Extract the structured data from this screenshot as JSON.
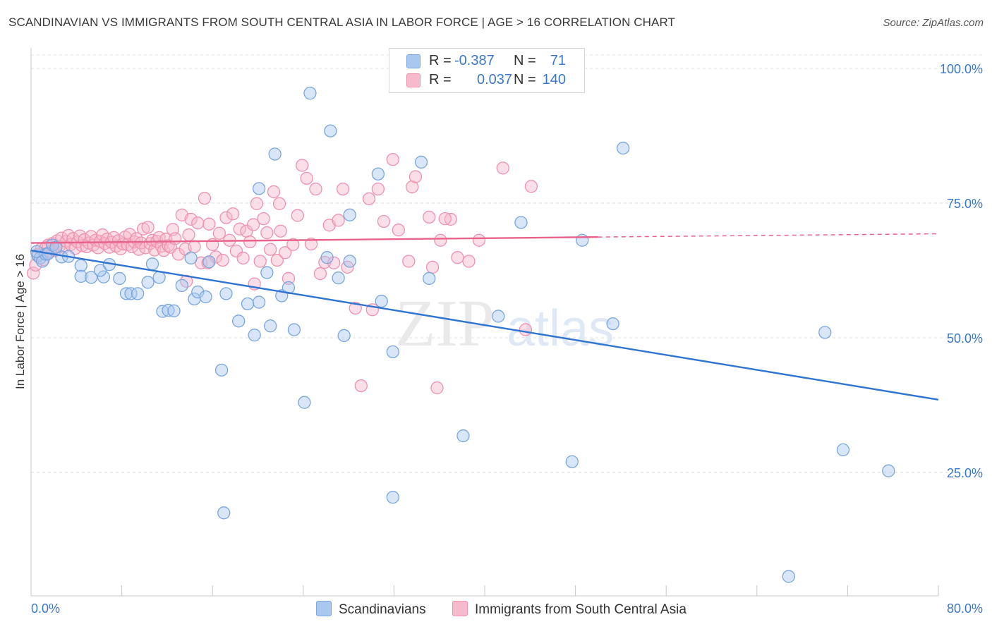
{
  "title": "SCANDINAVIAN VS IMMIGRANTS FROM SOUTH CENTRAL ASIA IN LABOR FORCE | AGE > 16 CORRELATION CHART",
  "source": "Source: ZipAtlas.com",
  "watermark": {
    "zip": "ZIP",
    "atlas": "atlas"
  },
  "legend": {
    "r_label": "R =",
    "n_label": "N =",
    "rows": [
      {
        "r": "-0.387",
        "n": "71",
        "color": "#a9c8f0",
        "border": "#7aa6de"
      },
      {
        "r": "0.037",
        "n": "140",
        "color": "#f7b9cc",
        "border": "#ee92ad"
      }
    ]
  },
  "bottom_legend": [
    {
      "label": "Scandinavians",
      "color": "#a9c8f0",
      "border": "#7aa6de"
    },
    {
      "label": "Immigrants from South Central Asia",
      "color": "#f7b9cc",
      "border": "#ee92ad"
    }
  ],
  "chart_data": {
    "type": "scatter",
    "title": "SCANDINAVIAN VS IMMIGRANTS FROM SOUTH CENTRAL ASIA IN LABOR FORCE | AGE > 16 CORRELATION CHART",
    "xlabel": "",
    "ylabel": "In Labor Force | Age > 16",
    "xlim": [
      0,
      80
    ],
    "ylim": [
      0,
      100
    ],
    "x_tick_labels": [
      "0.0%",
      "80.0%"
    ],
    "y_tick_values": [
      25,
      50,
      75,
      100
    ],
    "y_tick_labels": [
      "25.0%",
      "50.0%",
      "75.0%",
      "100.0%"
    ],
    "grid": true,
    "series": [
      {
        "name": "Scandinavians",
        "color": "#7aa6de",
        "fill": "rgba(169,200,240,0.45)",
        "line_color": "#2f74d0",
        "trend": {
          "x0": 0,
          "y0": 66.2,
          "x1": 80,
          "y1": 38.5
        },
        "points": [
          [
            0.6,
            65.2
          ],
          [
            0.8,
            64.8
          ],
          [
            1.0,
            64.2
          ],
          [
            1.3,
            65.5
          ],
          [
            1.5,
            65.6
          ],
          [
            1.9,
            67.2
          ],
          [
            2.7,
            65.0
          ],
          [
            2.2,
            66.8
          ],
          [
            4.4,
            63.4
          ],
          [
            3.3,
            65.1
          ],
          [
            4.4,
            61.4
          ],
          [
            5.3,
            61.2
          ],
          [
            6.4,
            61.3
          ],
          [
            6.1,
            62.5
          ],
          [
            6.9,
            63.6
          ],
          [
            7.8,
            61.0
          ],
          [
            8.4,
            58.2
          ],
          [
            8.8,
            58.2
          ],
          [
            9.4,
            58.2
          ],
          [
            10.3,
            60.3
          ],
          [
            10.7,
            63.7
          ],
          [
            11.3,
            61.2
          ],
          [
            11.6,
            54.9
          ],
          [
            12.1,
            55.1
          ],
          [
            12.6,
            55.0
          ],
          [
            13.3,
            59.7
          ],
          [
            14.1,
            64.8
          ],
          [
            14.4,
            57.2
          ],
          [
            14.7,
            58.5
          ],
          [
            15.4,
            57.6
          ],
          [
            15.7,
            64.1
          ],
          [
            16.8,
            44.0
          ],
          [
            17.2,
            58.2
          ],
          [
            17.0,
            17.5
          ],
          [
            18.3,
            53.1
          ],
          [
            19.1,
            56.3
          ],
          [
            19.7,
            50.5
          ],
          [
            20.1,
            56.6
          ],
          [
            20.1,
            77.7
          ],
          [
            20.8,
            62.1
          ],
          [
            21.1,
            52.2
          ],
          [
            21.5,
            84.1
          ],
          [
            22.1,
            57.8
          ],
          [
            22.7,
            59.3
          ],
          [
            23.2,
            51.5
          ],
          [
            24.1,
            38.0
          ],
          [
            24.6,
            95.4
          ],
          [
            26.1,
            64.9
          ],
          [
            26.4,
            88.4
          ],
          [
            27.1,
            61.1
          ],
          [
            27.6,
            50.4
          ],
          [
            28.1,
            72.8
          ],
          [
            28.1,
            64.2
          ],
          [
            30.6,
            80.4
          ],
          [
            30.9,
            56.8
          ],
          [
            31.9,
            47.4
          ],
          [
            31.9,
            20.4
          ],
          [
            34.4,
            82.6
          ],
          [
            35.1,
            61.0
          ],
          [
            38.1,
            31.8
          ],
          [
            41.2,
            54.0
          ],
          [
            43.2,
            71.4
          ],
          [
            47.7,
            27.0
          ],
          [
            48.6,
            68.1
          ],
          [
            51.3,
            52.6
          ],
          [
            52.2,
            85.2
          ],
          [
            66.8,
            5.7
          ],
          [
            70.0,
            51.0
          ],
          [
            71.6,
            29.2
          ],
          [
            75.6,
            25.3
          ],
          [
            0.5,
            66.0
          ]
        ]
      },
      {
        "name": "Immigrants from South Central Asia",
        "color": "#ee92ad",
        "fill": "rgba(247,185,204,0.45)",
        "line_color": "#e8628c",
        "trend": {
          "x0": 0,
          "y0": 67.6,
          "x1": 50,
          "y1": 68.7
        },
        "trend_ext": {
          "x0": 50,
          "y0": 68.7,
          "x1": 80,
          "y1": 69.3
        },
        "points": [
          [
            0.2,
            62.0
          ],
          [
            0.4,
            63.5
          ],
          [
            0.6,
            65.5
          ],
          [
            0.9,
            66.5
          ],
          [
            1.1,
            64.5
          ],
          [
            1.3,
            66.8
          ],
          [
            1.5,
            67.2
          ],
          [
            1.7,
            66.0
          ],
          [
            1.9,
            67.5
          ],
          [
            2.1,
            66.2
          ],
          [
            2.3,
            68.0
          ],
          [
            2.5,
            67.0
          ],
          [
            2.7,
            68.5
          ],
          [
            2.9,
            66.8
          ],
          [
            3.1,
            67.9
          ],
          [
            3.3,
            69.0
          ],
          [
            3.5,
            67.3
          ],
          [
            3.7,
            68.4
          ],
          [
            3.9,
            66.6
          ],
          [
            4.1,
            67.8
          ],
          [
            4.3,
            68.9
          ],
          [
            4.5,
            67.1
          ],
          [
            4.7,
            68.2
          ],
          [
            4.9,
            66.9
          ],
          [
            5.1,
            67.6
          ],
          [
            5.3,
            68.8
          ],
          [
            5.5,
            67.2
          ],
          [
            5.7,
            68.1
          ],
          [
            5.9,
            66.7
          ],
          [
            6.1,
            67.9
          ],
          [
            6.3,
            69.1
          ],
          [
            6.5,
            67.5
          ],
          [
            6.7,
            68.3
          ],
          [
            6.9,
            66.8
          ],
          [
            7.1,
            67.7
          ],
          [
            7.3,
            68.6
          ],
          [
            7.5,
            67.0
          ],
          [
            7.7,
            68.0
          ],
          [
            7.9,
            66.5
          ],
          [
            8.1,
            67.4
          ],
          [
            8.3,
            68.7
          ],
          [
            8.5,
            67.3
          ],
          [
            8.7,
            69.2
          ],
          [
            8.9,
            66.9
          ],
          [
            9.1,
            67.8
          ],
          [
            9.3,
            68.4
          ],
          [
            9.5,
            66.4
          ],
          [
            9.7,
            67.6
          ],
          [
            9.9,
            70.2
          ],
          [
            10.1,
            66.7
          ],
          [
            10.3,
            70.5
          ],
          [
            10.5,
            67.5
          ],
          [
            10.7,
            68.1
          ],
          [
            10.9,
            66.3
          ],
          [
            11.1,
            67.9
          ],
          [
            11.3,
            68.6
          ],
          [
            11.5,
            67.0
          ],
          [
            11.7,
            66.2
          ],
          [
            11.9,
            68.3
          ],
          [
            12.1,
            67.1
          ],
          [
            12.3,
            66.8
          ],
          [
            12.5,
            70.1
          ],
          [
            12.7,
            68.4
          ],
          [
            13.0,
            65.5
          ],
          [
            13.3,
            72.8
          ],
          [
            13.6,
            66.5
          ],
          [
            13.9,
            69.1
          ],
          [
            14.1,
            72.0
          ],
          [
            14.4,
            66.9
          ],
          [
            14.7,
            71.3
          ],
          [
            15.0,
            63.9
          ],
          [
            15.3,
            75.9
          ],
          [
            15.7,
            71.1
          ],
          [
            16.0,
            67.3
          ],
          [
            16.3,
            65.0
          ],
          [
            16.6,
            69.4
          ],
          [
            16.9,
            64.4
          ],
          [
            17.2,
            72.3
          ],
          [
            17.5,
            68.1
          ],
          [
            17.8,
            73.0
          ],
          [
            18.1,
            66.1
          ],
          [
            18.4,
            70.2
          ],
          [
            18.7,
            64.8
          ],
          [
            19.0,
            69.8
          ],
          [
            19.3,
            67.8
          ],
          [
            19.6,
            71.0
          ],
          [
            19.9,
            74.9
          ],
          [
            20.2,
            64.2
          ],
          [
            20.5,
            72.1
          ],
          [
            20.8,
            69.5
          ],
          [
            21.1,
            66.4
          ],
          [
            21.4,
            77.1
          ],
          [
            21.7,
            64.4
          ],
          [
            22.0,
            69.8
          ],
          [
            22.4,
            65.8
          ],
          [
            22.7,
            61.0
          ],
          [
            23.1,
            67.3
          ],
          [
            23.5,
            72.7
          ],
          [
            23.9,
            82.0
          ],
          [
            24.3,
            79.6
          ],
          [
            24.7,
            67.4
          ],
          [
            25.1,
            77.6
          ],
          [
            25.5,
            61.9
          ],
          [
            25.9,
            64.0
          ],
          [
            26.3,
            70.9
          ],
          [
            26.7,
            63.9
          ],
          [
            27.1,
            71.8
          ],
          [
            27.5,
            77.6
          ],
          [
            27.9,
            63.1
          ],
          [
            28.6,
            55.5
          ],
          [
            29.1,
            41.1
          ],
          [
            29.8,
            75.8
          ],
          [
            30.1,
            55.2
          ],
          [
            30.6,
            77.6
          ],
          [
            31.1,
            71.6
          ],
          [
            31.9,
            83.1
          ],
          [
            32.4,
            70.0
          ],
          [
            33.3,
            64.2
          ],
          [
            33.6,
            78.0
          ],
          [
            33.9,
            79.9
          ],
          [
            35.1,
            72.4
          ],
          [
            35.4,
            63.1
          ],
          [
            35.8,
            40.7
          ],
          [
            36.1,
            68.1
          ],
          [
            37.0,
            72.0
          ],
          [
            37.6,
            64.9
          ],
          [
            38.6,
            64.2
          ],
          [
            39.5,
            68.1
          ],
          [
            41.6,
            81.5
          ],
          [
            43.6,
            51.5
          ],
          [
            44.1,
            78.1
          ],
          [
            36.5,
            72.1
          ],
          [
            15.6,
            63.9
          ],
          [
            21.9,
            74.9
          ],
          [
            19.7,
            60.0
          ],
          [
            13.7,
            60.5
          ]
        ]
      }
    ]
  }
}
